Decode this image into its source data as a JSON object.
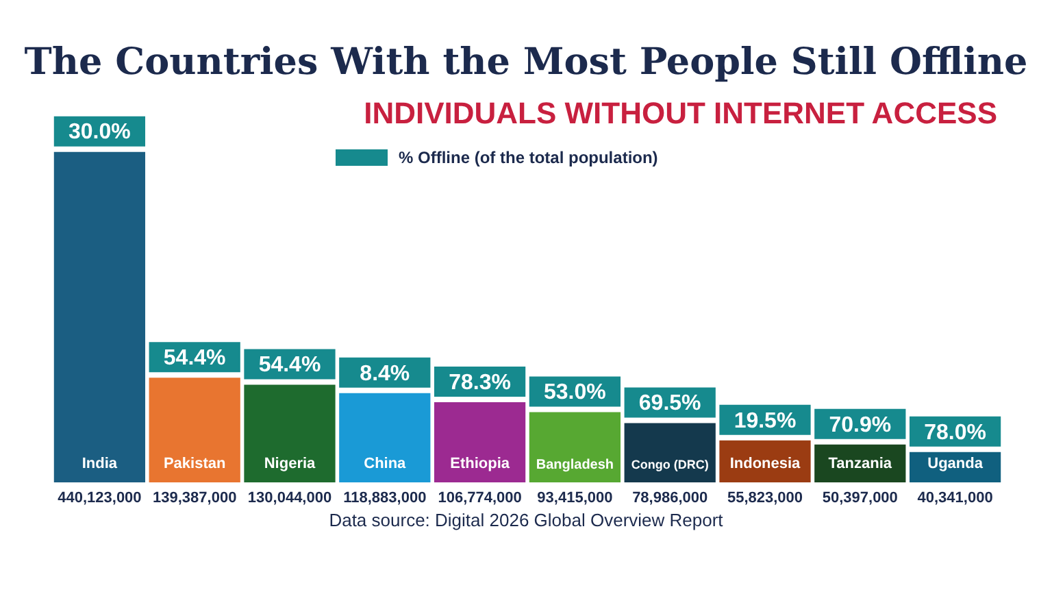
{
  "chart_data": {
    "type": "bar",
    "title": "The Countries With the Most People Still Offline",
    "subtitle": "INDIVIDUALS WITHOUT INTERNET ACCESS",
    "categories": [
      "India",
      "Pakistan",
      "Nigeria",
      "China",
      "Ethiopia",
      "Bangladesh",
      "Congo (DRC)",
      "Indonesia",
      "Tanzania",
      "Uganda"
    ],
    "series": [
      {
        "colors": [
          "#1b5e82",
          "#e87530",
          "#1e6b2e",
          "#1a9ad6",
          "#9c2a91",
          "#57a832",
          "#14394d",
          "#9b3c12",
          "#1a4720",
          "#10607f"
        ],
        "values": [
          440123000,
          139387000,
          130044000,
          118883000,
          106774000,
          93415000,
          78986000,
          55823000,
          50397000,
          40341000
        ],
        "value_labels": [
          "440,123,000",
          "139,387,000",
          "130,044,000",
          "118,883,000",
          "106,774,000",
          "93,415,000",
          "78,986,000",
          "55,823,000",
          "50,397,000",
          "40,341,000"
        ]
      }
    ],
    "legend_title": "% Offline (of the total population)",
    "annotations": [
      {
        "text": "30.0%",
        "x": "India",
        "y": 440123000
      },
      {
        "text": "54.4%",
        "x": "Pakistan",
        "y": 139387000
      },
      {
        "text": "54.4%",
        "x": "Nigeria",
        "y": 130044000
      },
      {
        "text": "8.4%",
        "x": "China",
        "y": 118883000
      },
      {
        "text": "78.3%",
        "x": "Ethiopia",
        "y": 106774000
      },
      {
        "text": "53.0%",
        "x": "Bangladesh",
        "y": 93415000
      },
      {
        "text": "69.5%",
        "x": "Congo (DRC)",
        "y": 78986000
      },
      {
        "text": "19.5%",
        "x": "Indonesia",
        "y": 55823000
      },
      {
        "text": "70.9%",
        "x": "Tanzania",
        "y": 50397000
      },
      {
        "text": "78.0%",
        "x": "Uganda",
        "y": 40341000
      },
      "Data source: Digital 2026 Global Overview Report"
    ]
  }
}
